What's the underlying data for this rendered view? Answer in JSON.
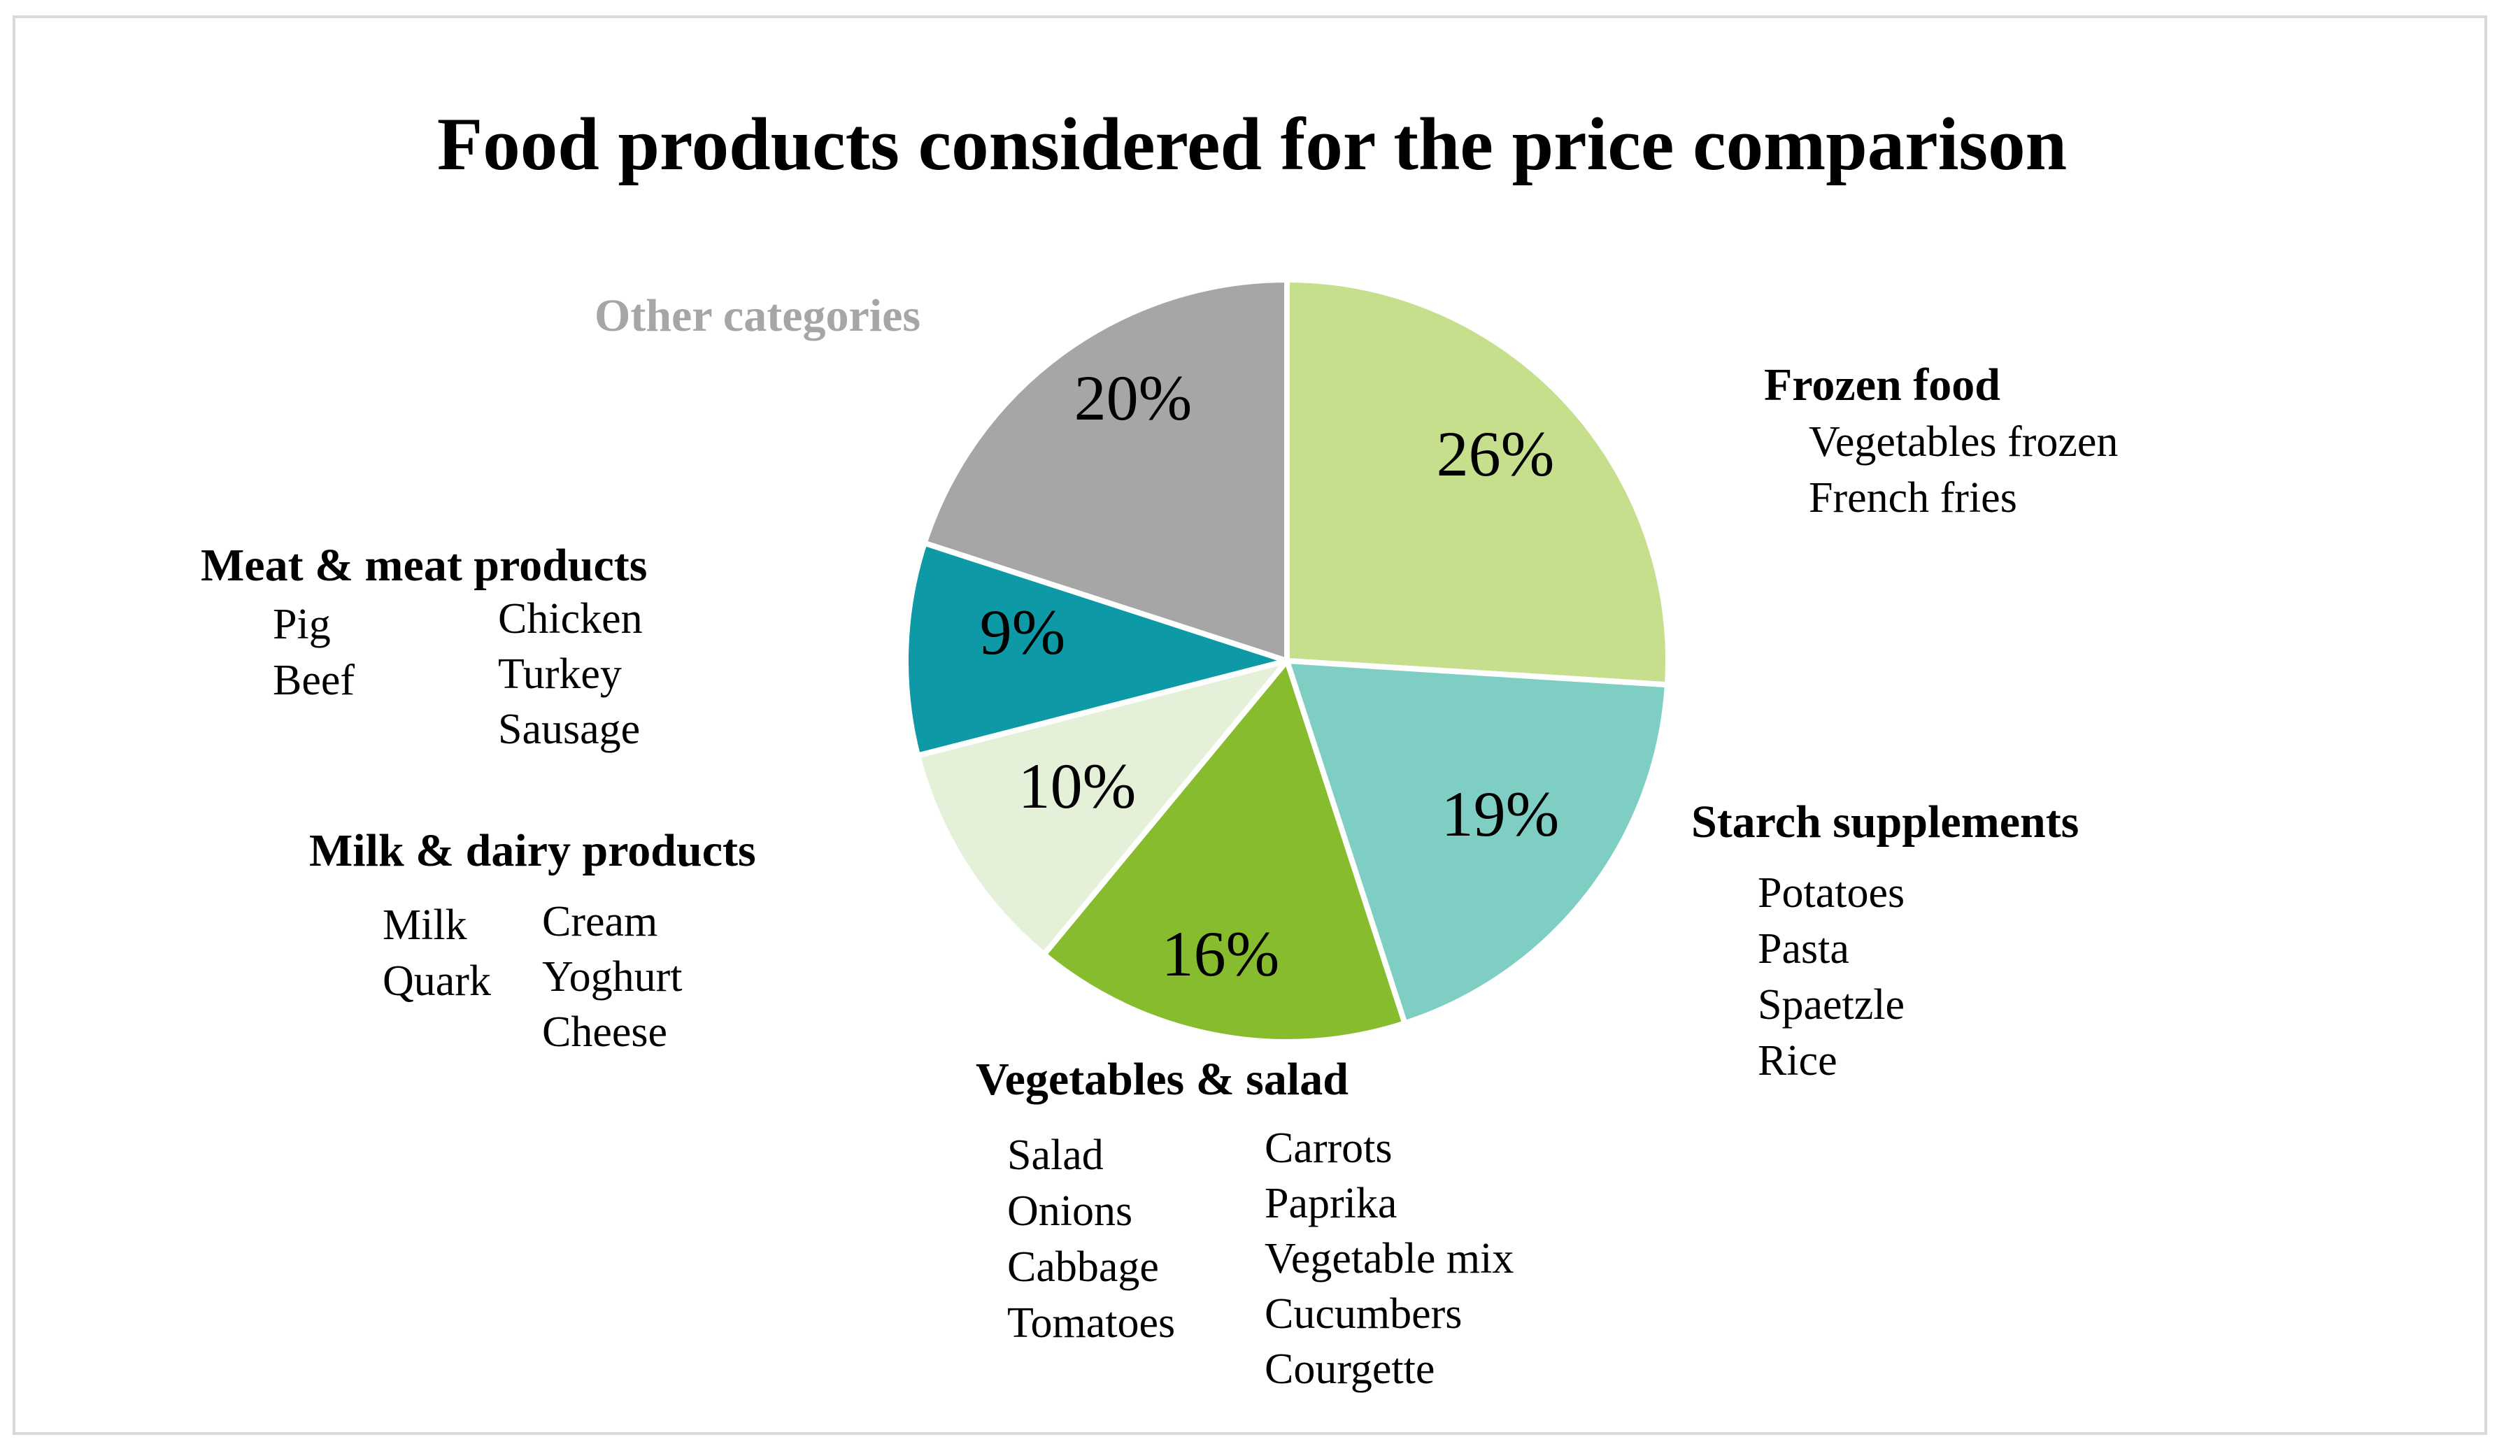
{
  "chart_data": {
    "type": "pie",
    "title": "Food products considered for the price comparison",
    "slices": [
      {
        "label": "Frozen food",
        "value": 26,
        "pct_label": "26%",
        "color": "#c5df8d",
        "label_color": "#000000",
        "items": [
          "Vegetables frozen",
          "French fries"
        ]
      },
      {
        "label": "Starch supplements",
        "value": 19,
        "pct_label": "19%",
        "color": "#7ecec4",
        "label_color": "#000000",
        "items": [
          "Potatoes",
          "Pasta",
          "Spaetzle",
          "Rice"
        ]
      },
      {
        "label": "Vegetables & salad",
        "value": 16,
        "pct_label": "16%",
        "color": "#87bc2e",
        "label_color": "#000000",
        "items": [
          "Salad",
          "Onions",
          "Cabbage",
          "Tomatoes",
          "Carrots",
          "Paprika",
          "Vegetable mix",
          "Cucumbers",
          "Courgette"
        ]
      },
      {
        "label": "Milk & dairy products",
        "value": 10,
        "pct_label": "10%",
        "color": "#e4f0d8",
        "label_color": "#000000",
        "items": [
          "Milk",
          "Quark",
          "Cream",
          "Yoghurt",
          "Cheese"
        ]
      },
      {
        "label": "Meat & meat products",
        "value": 9,
        "pct_label": "9%",
        "color": "#0d9aa6",
        "label_color": "#000000",
        "items": [
          "Pig",
          "Beef",
          "Chicken",
          "Turkey",
          "Sausage"
        ]
      },
      {
        "label": "Other categories",
        "value": 20,
        "pct_label": "20%",
        "color": "#a6a6a6",
        "label_color": "#a6a6a6",
        "items": []
      }
    ]
  }
}
